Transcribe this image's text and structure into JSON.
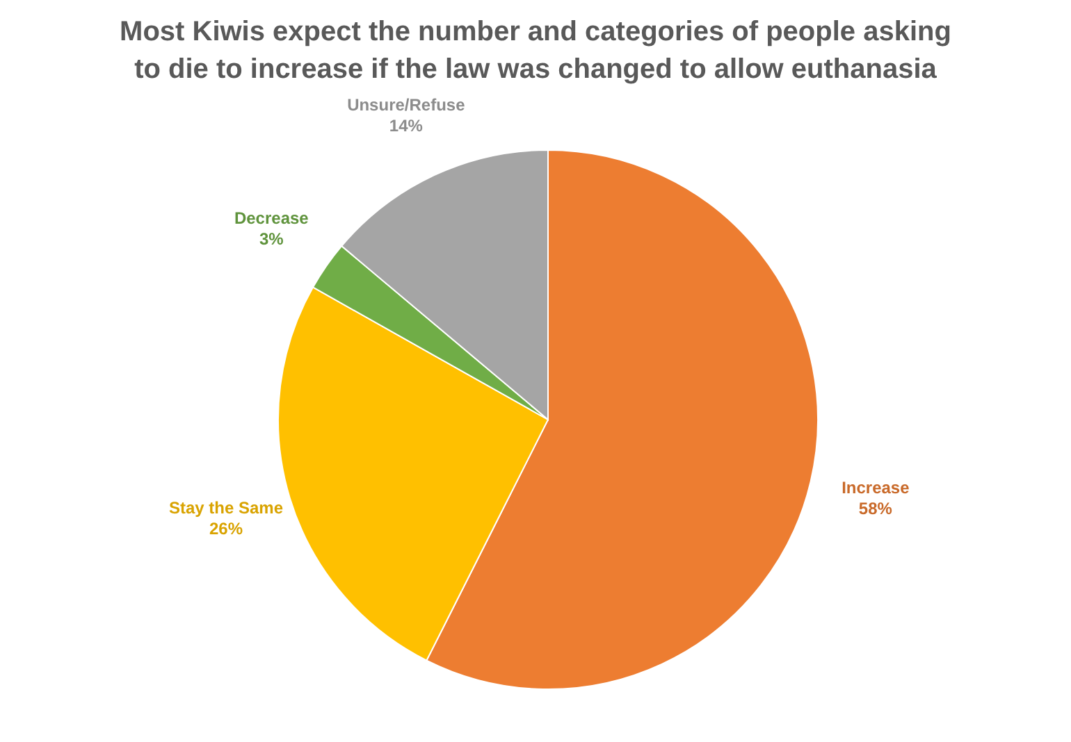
{
  "chart_data": {
    "type": "pie",
    "title": "Most Kiwis expect the number and categories of people asking to die to increase if the law was changed to allow euthanasia",
    "categories": [
      "Increase",
      "Stay the Same",
      "Decrease",
      "Unsure/Refuse"
    ],
    "values": [
      58,
      26,
      3,
      14
    ],
    "colors": [
      "#ed7d31",
      "#ffc000",
      "#70ad47",
      "#a5a5a5"
    ],
    "value_labels": [
      "58%",
      "26%",
      "3%",
      "14%"
    ]
  }
}
